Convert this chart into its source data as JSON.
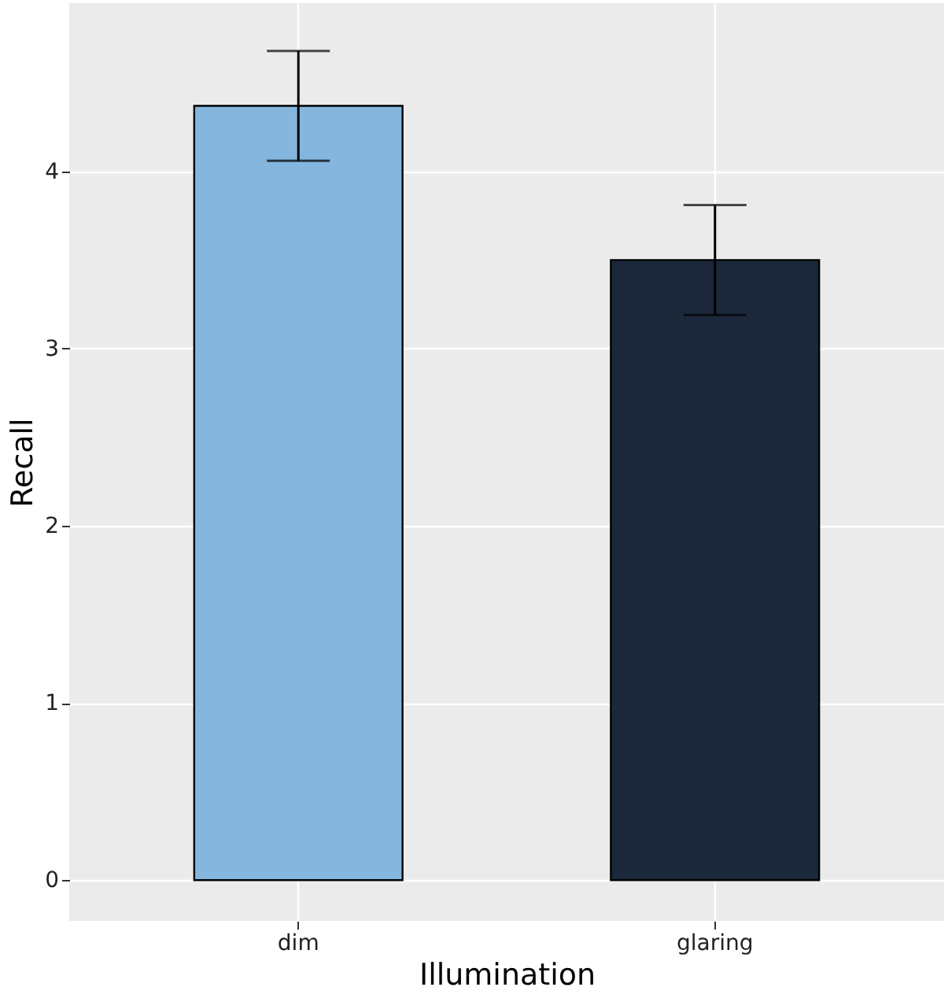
{
  "chart_data": {
    "type": "bar",
    "xlabel": "Illumination",
    "ylabel": "Recall",
    "categories": [
      "dim",
      "glaring"
    ],
    "values": [
      4.37,
      3.5
    ],
    "colors": [
      "#84b6de",
      "#1b283a"
    ],
    "errors": [
      [
        4.06,
        4.68
      ],
      [
        3.19,
        3.81
      ]
    ],
    "ylim": [
      -0.23,
      4.95
    ],
    "yticks": [
      0,
      1,
      2,
      3,
      4
    ],
    "grid": true
  }
}
